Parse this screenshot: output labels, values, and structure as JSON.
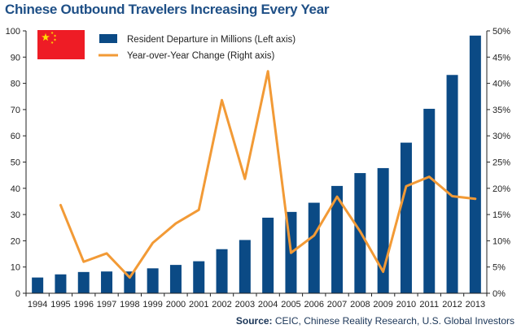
{
  "chart_data": {
    "type": "bar",
    "title": "Chinese Outbound Travelers Increasing Every Year",
    "categories": [
      "1994",
      "1995",
      "1996",
      "1997",
      "1998",
      "1999",
      "2000",
      "2001",
      "2002",
      "2003",
      "2004",
      "2005",
      "2006",
      "2007",
      "2008",
      "2009",
      "2010",
      "2011",
      "2012",
      "2013"
    ],
    "series": [
      {
        "name": "Resident Departure in Millions (Left axis)",
        "type": "bar",
        "axis": "left",
        "color": "#0b4a85",
        "values": [
          6.0,
          7.2,
          8.1,
          8.3,
          8.3,
          9.5,
          10.8,
          12.2,
          16.8,
          20.3,
          28.8,
          31.0,
          34.5,
          40.9,
          45.8,
          47.7,
          57.4,
          70.3,
          83.2,
          98.2
        ]
      },
      {
        "name": "Year-over-Year Change (Right axis)",
        "type": "line",
        "axis": "right",
        "color": "#f29a36",
        "values": [
          null,
          16.8,
          6.0,
          7.6,
          3.0,
          9.6,
          13.3,
          15.9,
          36.8,
          21.8,
          42.3,
          7.7,
          11.0,
          18.4,
          11.8,
          4.1,
          20.4,
          22.2,
          18.5,
          18.0
        ]
      }
    ],
    "ylim_left": [
      0,
      100
    ],
    "ylim_right": [
      0,
      50
    ],
    "yticks_left": [
      "0",
      "10",
      "20",
      "30",
      "40",
      "50",
      "60",
      "70",
      "80",
      "90",
      "100"
    ],
    "yticks_right": [
      "0%",
      "5%",
      "10%",
      "15%",
      "20%",
      "25%",
      "30%",
      "35%",
      "40%",
      "45%",
      "50%"
    ],
    "grid": false,
    "legend_position": "top-left"
  },
  "source": {
    "label": "Source:",
    "text": " CEIC, Chinese Reality Research, U.S. Global Investors"
  },
  "flag": {
    "icon": "china-flag",
    "colors": {
      "field": "#ee1c25",
      "stars": "#ffde00"
    }
  }
}
